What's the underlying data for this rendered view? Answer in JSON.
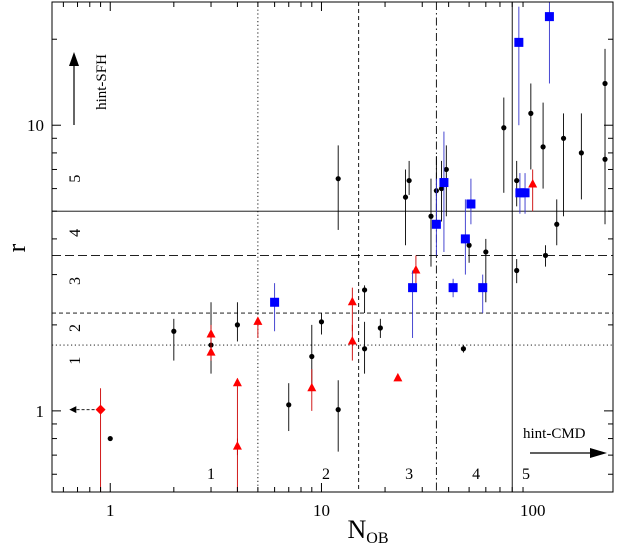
{
  "chart_data": {
    "type": "scatter",
    "title": "",
    "xlabel": "N",
    "xlabel_sub": "OB",
    "ylabel": "r",
    "x_scale": "log",
    "y_scale": "log",
    "xlim": [
      0.53,
      240
    ],
    "ylim": [
      0.52,
      27
    ],
    "x_ticks": [
      {
        "value": 1,
        "label": "1"
      },
      {
        "value": 10,
        "label": "10"
      },
      {
        "value": 100,
        "label": "100"
      }
    ],
    "y_ticks": [
      {
        "value": 1,
        "label": "1"
      },
      {
        "value": 10,
        "label": "10"
      }
    ],
    "vertical_thresholds": [
      {
        "x": 5,
        "style": "dotted"
      },
      {
        "x": 15,
        "style": "dashed"
      },
      {
        "x": 35,
        "style": "dashdot"
      },
      {
        "x": 80,
        "style": "solid"
      }
    ],
    "horizontal_thresholds": [
      {
        "y": 1.7,
        "style": "dotted"
      },
      {
        "y": 2.2,
        "style": "dashed"
      },
      {
        "y": 3.5,
        "style": "longdash"
      },
      {
        "y": 5.0,
        "style": "solid"
      }
    ],
    "x_class_labels": [
      {
        "label": "1",
        "x": 3.0
      },
      {
        "label": "2",
        "x": 10.5
      },
      {
        "label": "3",
        "x": 26
      },
      {
        "label": "4",
        "x": 54
      },
      {
        "label": "5",
        "x": 93
      }
    ],
    "y_class_labels": [
      {
        "label": "1",
        "y": 1.5
      },
      {
        "label": "2",
        "y": 1.95
      },
      {
        "label": "3",
        "y": 2.85
      },
      {
        "label": "4",
        "y": 4.2
      },
      {
        "label": "5",
        "y": 6.5
      }
    ],
    "annotations": {
      "hint_sfh": "hint-SFH",
      "hint_cmd": "hint-CMD"
    },
    "series": [
      {
        "name": "black-dots",
        "marker": "circle",
        "color": "#000000",
        "points": [
          {
            "x": 1.0,
            "y": 0.8,
            "ylo": 0.8,
            "yhi": 0.8
          },
          {
            "x": 2.0,
            "y": 1.9,
            "ylo": 1.5,
            "yhi": 2.1
          },
          {
            "x": 3.0,
            "y": 1.7,
            "ylo": 1.35,
            "yhi": 2.4
          },
          {
            "x": 4.0,
            "y": 2.0,
            "ylo": 1.75,
            "yhi": 2.4
          },
          {
            "x": 7.0,
            "y": 1.05,
            "ylo": 0.85,
            "yhi": 1.25
          },
          {
            "x": 9.0,
            "y": 1.55,
            "ylo": 1.2,
            "yhi": 2.0
          },
          {
            "x": 10.0,
            "y": 2.05,
            "ylo": 1.85,
            "yhi": 2.2
          },
          {
            "x": 12.0,
            "y": 1.01,
            "ylo": 0.72,
            "yhi": 1.28
          },
          {
            "x": 12.0,
            "y": 6.5,
            "ylo": 4.3,
            "yhi": 8.5
          },
          {
            "x": 16.0,
            "y": 1.65,
            "ylo": 1.35,
            "yhi": 2.05
          },
          {
            "x": 16.0,
            "y": 2.65,
            "ylo": 2.2,
            "yhi": 2.75
          },
          {
            "x": 19.0,
            "y": 1.95,
            "ylo": 1.8,
            "yhi": 2.1
          },
          {
            "x": 25.0,
            "y": 5.6,
            "ylo": 3.8,
            "yhi": 7.0
          },
          {
            "x": 26.0,
            "y": 6.4,
            "ylo": 5.7,
            "yhi": 7.5
          },
          {
            "x": 33.0,
            "y": 4.8,
            "ylo": 3.2,
            "yhi": 6.5
          },
          {
            "x": 35.0,
            "y": 5.9,
            "ylo": 4.6,
            "yhi": 7.8
          },
          {
            "x": 37.0,
            "y": 6.0,
            "ylo": 4.6,
            "yhi": 7.5
          },
          {
            "x": 39.0,
            "y": 7.0,
            "ylo": 4.8,
            "yhi": 8.5
          },
          {
            "x": 47.0,
            "y": 1.65,
            "ylo": 1.6,
            "yhi": 1.7
          },
          {
            "x": 50.0,
            "y": 3.8,
            "ylo": 3.3,
            "yhi": 4.1
          },
          {
            "x": 60.0,
            "y": 3.6,
            "ylo": 2.4,
            "yhi": 4.0
          },
          {
            "x": 73.0,
            "y": 9.8,
            "ylo": 5.8,
            "yhi": 12.5
          },
          {
            "x": 84.0,
            "y": 3.1,
            "ylo": 2.8,
            "yhi": 3.4
          },
          {
            "x": 84.0,
            "y": 6.4,
            "ylo": 5.2,
            "yhi": 7.5
          },
          {
            "x": 98.0,
            "y": 11.0,
            "ylo": 7.0,
            "yhi": 14.0
          },
          {
            "x": 112.0,
            "y": 8.4,
            "ylo": 6.0,
            "yhi": 12.0
          },
          {
            "x": 115.0,
            "y": 3.5,
            "ylo": 3.2,
            "yhi": 3.8
          },
          {
            "x": 130.0,
            "y": 4.5,
            "ylo": 3.8,
            "yhi": 5.5
          },
          {
            "x": 140.0,
            "y": 9.0,
            "ylo": 4.8,
            "yhi": 11.0
          },
          {
            "x": 170.0,
            "y": 8.0,
            "ylo": 5.5,
            "yhi": 11.0
          },
          {
            "x": 220.0,
            "y": 14.0,
            "ylo": 7.0,
            "yhi": 18.5
          },
          {
            "x": 220.0,
            "y": 7.6,
            "ylo": 4.5,
            "yhi": 8.0
          }
        ]
      },
      {
        "name": "red-triangles",
        "marker": "triangle",
        "color": "#ff0000",
        "points": [
          {
            "x": 3.0,
            "y": 1.85,
            "ylo": 1.7,
            "yhi": 2.0
          },
          {
            "x": 3.0,
            "y": 1.6,
            "ylo": 1.5,
            "yhi": 1.7
          },
          {
            "x": 4.0,
            "y": 1.25,
            "ylo": 0.7,
            "yhi": 1.3
          },
          {
            "x": 4.0,
            "y": 0.75,
            "ylo": 0.5,
            "yhi": 0.8
          },
          {
            "x": 5.0,
            "y": 2.05,
            "ylo": 1.8,
            "yhi": 2.1
          },
          {
            "x": 9.0,
            "y": 1.2,
            "ylo": 1.0,
            "yhi": 1.4
          },
          {
            "x": 14.0,
            "y": 2.4,
            "ylo": 1.9,
            "yhi": 2.7
          },
          {
            "x": 14.0,
            "y": 1.75,
            "ylo": 1.5,
            "yhi": 2.0
          },
          {
            "x": 23.0,
            "y": 1.3,
            "ylo": 1.28,
            "yhi": 1.32
          },
          {
            "x": 28.0,
            "y": 3.1,
            "ylo": 2.8,
            "yhi": 3.5
          },
          {
            "x": 100.0,
            "y": 6.2,
            "ylo": 5.0,
            "yhi": 7.0
          }
        ]
      },
      {
        "name": "blue-squares",
        "marker": "square",
        "color": "#0000ff",
        "points": [
          {
            "x": 6.0,
            "y": 2.4,
            "ylo": 1.9,
            "yhi": 2.8
          },
          {
            "x": 27.0,
            "y": 2.7,
            "ylo": 1.8,
            "yhi": 3.1
          },
          {
            "x": 35.0,
            "y": 4.5,
            "ylo": 3.5,
            "yhi": 6.5
          },
          {
            "x": 38.0,
            "y": 6.3,
            "ylo": 3.6,
            "yhi": 9.5
          },
          {
            "x": 42.0,
            "y": 2.7,
            "ylo": 2.5,
            "yhi": 2.9
          },
          {
            "x": 48.0,
            "y": 4.0,
            "ylo": 3.0,
            "yhi": 5.5
          },
          {
            "x": 51.0,
            "y": 5.3,
            "ylo": 4.5,
            "yhi": 6.5
          },
          {
            "x": 58.0,
            "y": 2.7,
            "ylo": 2.2,
            "yhi": 3.0
          },
          {
            "x": 86.0,
            "y": 19.5,
            "ylo": 10.0,
            "yhi": 26.0
          },
          {
            "x": 87.0,
            "y": 5.8,
            "ylo": 4.9,
            "yhi": 6.8
          },
          {
            "x": 92.0,
            "y": 5.8,
            "ylo": 4.9,
            "yhi": 6.8
          },
          {
            "x": 120.0,
            "y": 24.0,
            "ylo": 14.0,
            "yhi": 27.0
          }
        ]
      },
      {
        "name": "red-diamond-lower-limit",
        "marker": "diamond",
        "color": "#ff0000",
        "points": [
          {
            "x": 0.9,
            "y": 1.01,
            "ylo": 0.5,
            "yhi": 1.2
          }
        ]
      }
    ]
  }
}
